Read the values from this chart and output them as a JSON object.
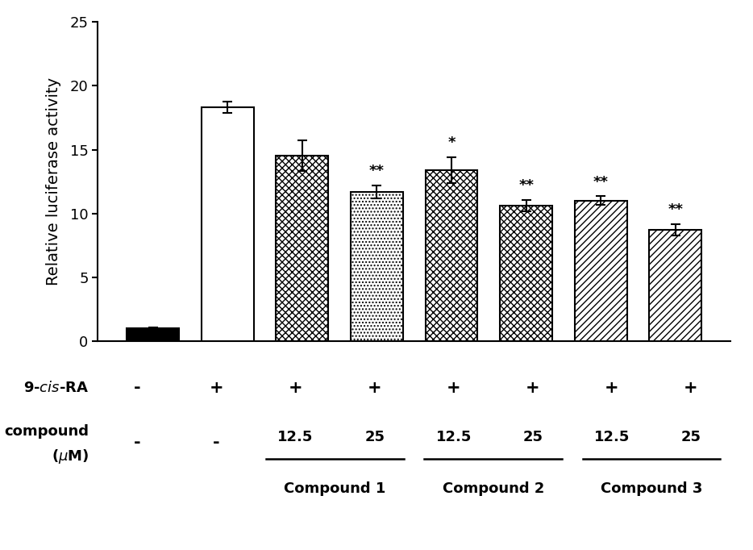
{
  "values": [
    1.0,
    18.3,
    14.5,
    11.7,
    13.4,
    10.6,
    11.0,
    8.7
  ],
  "errors": [
    0.05,
    0.45,
    1.2,
    0.5,
    1.0,
    0.45,
    0.35,
    0.45
  ],
  "hatch_list": [
    "",
    "",
    "xxxx",
    "....",
    "XXXX",
    "xxxx",
    "////",
    "////"
  ],
  "face_list": [
    "black",
    "white",
    "white",
    "white",
    "white",
    "white",
    "white",
    "white"
  ],
  "edge_list": [
    "black",
    "black",
    "black",
    "black",
    "black",
    "black",
    "black",
    "black"
  ],
  "significance": [
    "",
    "",
    "",
    "**",
    "*",
    "**",
    "**",
    "**"
  ],
  "ylabel": "Relative luciferase activity",
  "ylim": [
    0,
    25
  ],
  "yticks": [
    0,
    5,
    10,
    15,
    20,
    25
  ],
  "bar_width": 0.7,
  "nine_cis_ra": [
    "-",
    "+",
    "+",
    "+",
    "+",
    "+",
    "+",
    "+"
  ],
  "compound_conc": [
    "",
    "",
    "12.5",
    "25",
    "12.5",
    "25",
    "12.5",
    "25"
  ],
  "compound_names": [
    "Compound 1",
    "Compound 2",
    "Compound 3"
  ],
  "background_color": "#ffffff",
  "bar_linewidth": 1.5,
  "errorbar_capsize": 4,
  "errorbar_linewidth": 1.5,
  "sig_fontsize": 13,
  "ylabel_fontsize": 14,
  "tick_fontsize": 13,
  "annot_fontsize": 13
}
